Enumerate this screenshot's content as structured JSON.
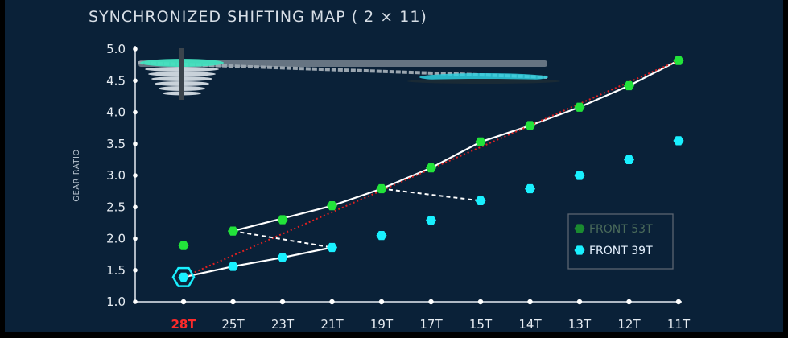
{
  "chart_data": {
    "type": "line",
    "title": "SYNCHRONIZED SHIFTING MAP ( 2 × 11)",
    "ylabel": "GEAR RATIO",
    "xlabel": "",
    "ylim": [
      1.0,
      5.0
    ],
    "yticks": [
      "1.0",
      "1.5",
      "2.0",
      "2.5",
      "3.0",
      "3.5",
      "4.0",
      "4.5",
      "5.0"
    ],
    "categories": [
      "28T",
      "25T",
      "23T",
      "21T",
      "19T",
      "17T",
      "15T",
      "14T",
      "13T",
      "12T",
      "11T"
    ],
    "highlight_category": "28T",
    "series": [
      {
        "name": "FRONT 53T",
        "color": "#22e33a",
        "marker": "hexagon",
        "values": [
          1.89,
          2.12,
          2.3,
          2.52,
          2.79,
          3.12,
          3.53,
          3.79,
          4.08,
          4.42,
          4.82
        ]
      },
      {
        "name": "FRONT 39T",
        "color": "#19f0ff",
        "marker": "hexagon",
        "values": [
          1.39,
          1.56,
          1.7,
          1.86,
          2.05,
          2.29,
          2.6,
          2.79,
          3.0,
          3.25,
          3.55
        ]
      }
    ],
    "shift_path": [
      [
        0,
        1
      ],
      [
        1,
        1
      ],
      [
        2,
        1
      ],
      [
        3,
        1
      ],
      [
        3,
        0
      ],
      [
        4,
        0
      ],
      [
        5,
        0
      ],
      [
        6,
        0
      ],
      [
        7,
        0
      ],
      [
        8,
        0
      ],
      [
        9,
        0
      ],
      [
        10,
        0
      ]
    ],
    "shift_transitions": [
      {
        "from": [
          1,
          0
        ],
        "to": [
          3,
          1
        ]
      },
      {
        "from": [
          4,
          0
        ],
        "to": [
          6,
          1
        ]
      }
    ],
    "trend_color": "#e02020",
    "current_gear": {
      "category": "28T",
      "series": "FRONT 39T"
    },
    "legend": {
      "position": "bottom-right",
      "entries": [
        "FRONT 53T",
        "FRONT 39T"
      ]
    },
    "grid": false
  }
}
